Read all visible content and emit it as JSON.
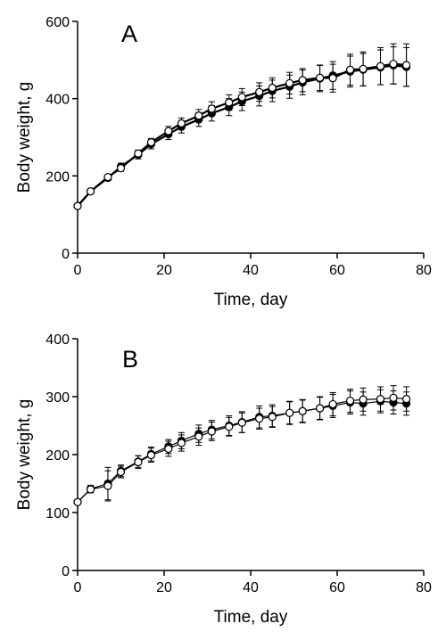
{
  "chart_data": [
    {
      "type": "line",
      "panel_label": "A",
      "xlabel": "Time, day",
      "ylabel": "Body weight, g",
      "xlim": [
        0,
        80
      ],
      "ylim": [
        0,
        600
      ],
      "xticks": [
        0,
        20,
        40,
        60,
        80
      ],
      "yticks": [
        0,
        200,
        400,
        600
      ],
      "grid": false,
      "legend": "none",
      "series": [
        {
          "marker": "filled-circle",
          "x": [
            0,
            3,
            7,
            10,
            14,
            17,
            21,
            24,
            28,
            31,
            35,
            38,
            42,
            45,
            49,
            52,
            56,
            59,
            63,
            66,
            70,
            73,
            76
          ],
          "y": [
            122,
            160,
            195,
            224,
            255,
            282,
            308,
            327,
            346,
            362,
            378,
            393,
            407,
            420,
            431,
            442,
            452,
            460,
            470,
            475,
            481,
            486,
            482
          ],
          "err": [
            5,
            6,
            7,
            9,
            11,
            12,
            14,
            16,
            18,
            20,
            22,
            24,
            26,
            28,
            30,
            32,
            34,
            36,
            40,
            42,
            45,
            48,
            50
          ]
        },
        {
          "marker": "open-circle",
          "x": [
            0,
            3,
            7,
            10,
            14,
            17,
            21,
            24,
            28,
            31,
            35,
            38,
            42,
            45,
            49,
            52,
            56,
            59,
            63,
            66,
            70,
            73,
            76
          ],
          "y": [
            122,
            160,
            197,
            220,
            258,
            287,
            316,
            336,
            356,
            374,
            390,
            404,
            417,
            428,
            440,
            448,
            454,
            453,
            475,
            477,
            484,
            490,
            487
          ],
          "err": [
            4,
            5,
            6,
            8,
            9,
            10,
            12,
            14,
            16,
            18,
            20,
            22,
            24,
            26,
            28,
            30,
            33,
            36,
            40,
            44,
            48,
            52,
            55
          ]
        }
      ]
    },
    {
      "type": "line",
      "panel_label": "B",
      "xlabel": "Time, day",
      "ylabel": "Body weight, g",
      "xlim": [
        0,
        80
      ],
      "ylim": [
        0,
        400
      ],
      "xticks": [
        0,
        20,
        40,
        60,
        80
      ],
      "yticks": [
        0,
        100,
        200,
        300,
        400
      ],
      "grid": false,
      "legend": "none",
      "series": [
        {
          "marker": "filled-circle",
          "x": [
            0,
            3,
            7,
            10,
            14,
            17,
            21,
            24,
            28,
            31,
            35,
            38,
            42,
            45,
            49,
            52,
            56,
            59,
            63,
            66,
            70,
            73,
            76
          ],
          "y": [
            118,
            141,
            150,
            172,
            188,
            201,
            214,
            224,
            236,
            243,
            250,
            256,
            265,
            267,
            272,
            275,
            280,
            284,
            290,
            288,
            292,
            290,
            288
          ],
          "err": [
            3,
            6,
            28,
            10,
            10,
            12,
            12,
            14,
            15,
            16,
            17,
            18,
            19,
            19,
            20,
            20,
            20,
            20,
            20,
            20,
            20,
            20,
            20
          ]
        },
        {
          "marker": "open-circle",
          "x": [
            0,
            3,
            7,
            10,
            14,
            17,
            21,
            24,
            28,
            31,
            35,
            38,
            42,
            45,
            49,
            52,
            56,
            59,
            63,
            66,
            70,
            73,
            76
          ],
          "y": [
            118,
            140,
            146,
            170,
            187,
            199,
            210,
            220,
            231,
            240,
            248,
            255,
            262,
            265,
            272,
            275,
            280,
            287,
            293,
            295,
            296,
            298,
            296
          ],
          "err": [
            3,
            6,
            26,
            10,
            11,
            12,
            13,
            14,
            15,
            16,
            16,
            17,
            18,
            18,
            19,
            19,
            19,
            20,
            20,
            20,
            21,
            21,
            21
          ]
        }
      ]
    }
  ]
}
